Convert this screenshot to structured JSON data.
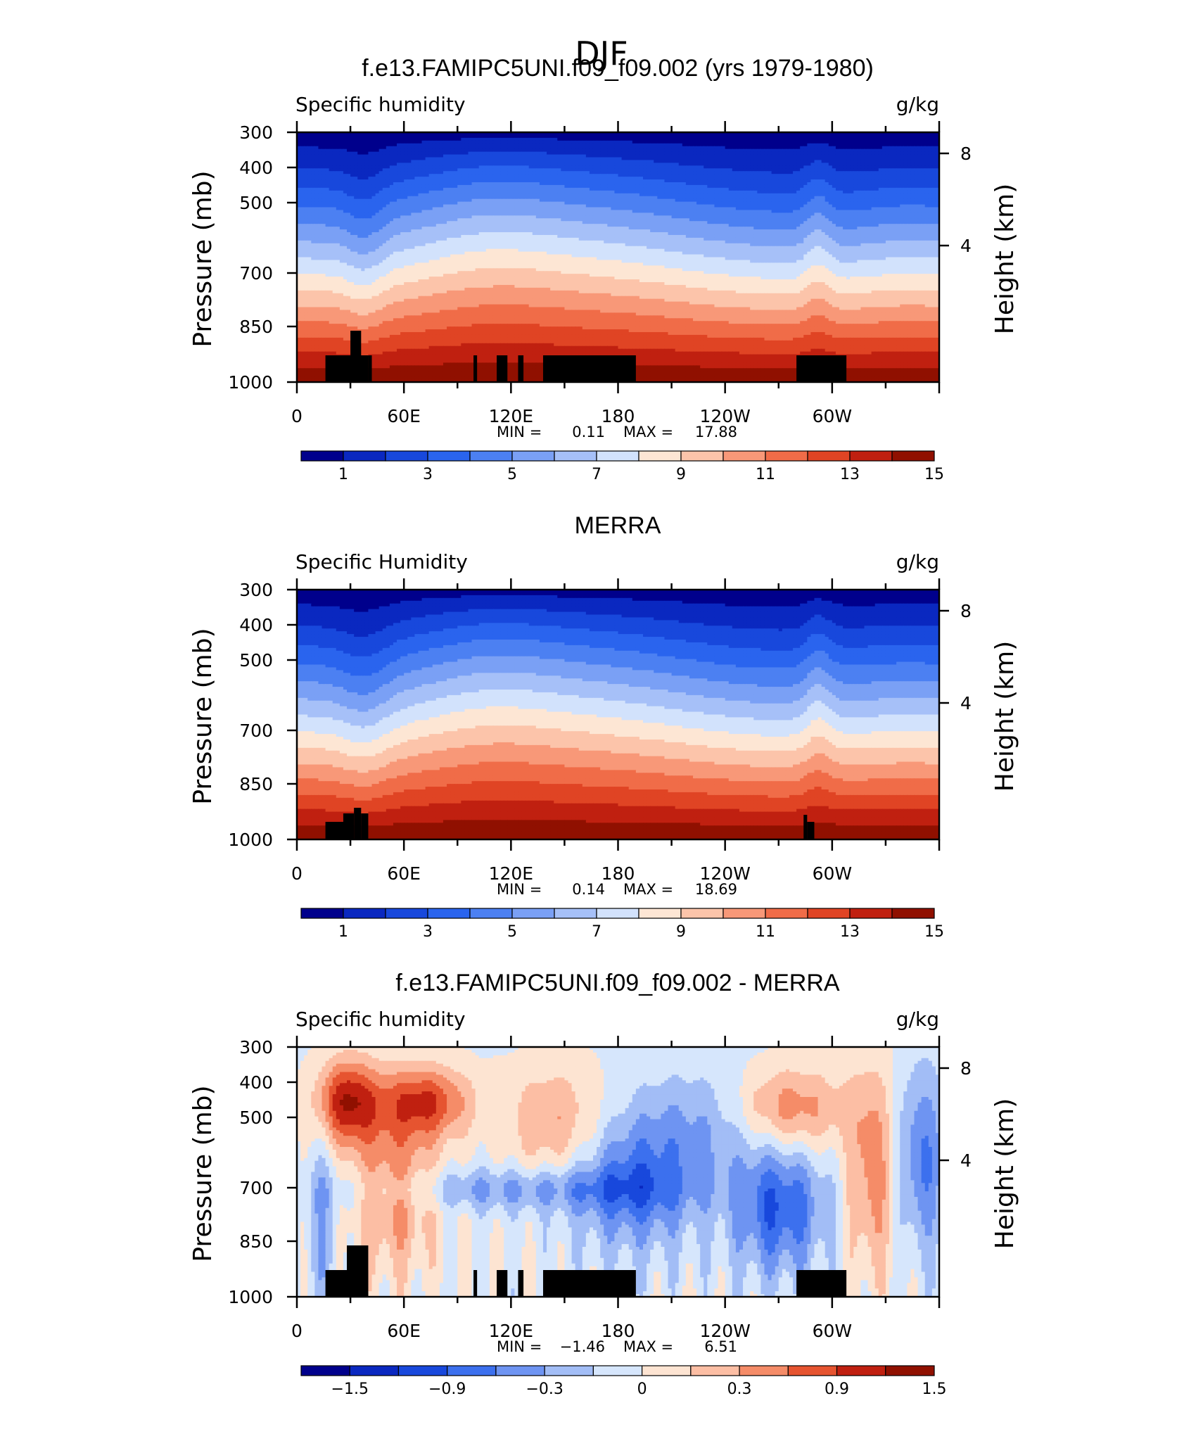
{
  "figure_title": "DJF",
  "colors": {
    "black": "#000000",
    "levels_abs": [
      "#00008c",
      "#0a28c0",
      "#1848dc",
      "#2a64ee",
      "#4c80f2",
      "#7aa0f5",
      "#a6c0f8",
      "#d2e2fc",
      "#fde6d4",
      "#fcc4aa",
      "#f89878",
      "#f06c48",
      "#e04424",
      "#c02010",
      "#901000"
    ],
    "levels_diff": [
      "#00008c",
      "#0a28c0",
      "#1848dc",
      "#3c70ee",
      "#6e94f2",
      "#a2bdf6",
      "#d6e6fc",
      "#fde4d2",
      "#fcbea4",
      "#f58c68",
      "#e65430",
      "#c02010",
      "#901000"
    ]
  },
  "chart_data": [
    {
      "type": "contour-cross-section",
      "title": "f.e13.FAMIPC5UNI.f09_f09.002 (yrs 1979-1980)",
      "left_label": "Specific humidity",
      "right_label": "g/kg",
      "ylabel": "Pressure (mb)",
      "ylabel_right": "Height (km)",
      "yticks": [
        "300",
        "400",
        "500",
        "700",
        "850",
        "1000"
      ],
      "yticks_right": [
        "8",
        "4"
      ],
      "xticks": [
        "0",
        "60E",
        "120E",
        "180",
        "120W",
        "60W"
      ],
      "stats": {
        "min_label": "MIN =",
        "min": "0.11",
        "max_label": "MAX =",
        "max": "17.88"
      },
      "colorbar_labels": [
        "1",
        "3",
        "5",
        "7",
        "9",
        "11",
        "13",
        "15"
      ],
      "field": "absolute",
      "variant": "model"
    },
    {
      "type": "contour-cross-section",
      "title": "MERRA",
      "left_label": "Specific Humidity",
      "right_label": "g/kg",
      "ylabel": "Pressure (mb)",
      "ylabel_right": "Height (km)",
      "yticks": [
        "300",
        "400",
        "500",
        "700",
        "850",
        "1000"
      ],
      "yticks_right": [
        "8",
        "4"
      ],
      "xticks": [
        "0",
        "60E",
        "120E",
        "180",
        "120W",
        "60W"
      ],
      "stats": {
        "min_label": "MIN =",
        "min": "0.14",
        "max_label": "MAX =",
        "max": "18.69"
      },
      "colorbar_labels": [
        "1",
        "3",
        "5",
        "7",
        "9",
        "11",
        "13",
        "15"
      ],
      "field": "absolute",
      "variant": "obs"
    },
    {
      "type": "contour-cross-section",
      "title": "f.e13.FAMIPC5UNI.f09_f09.002 - MERRA",
      "left_label": "Specific humidity",
      "right_label": "g/kg",
      "ylabel": "Pressure (mb)",
      "ylabel_right": "Height (km)",
      "yticks": [
        "300",
        "400",
        "500",
        "700",
        "850",
        "1000"
      ],
      "yticks_right": [
        "8",
        "4"
      ],
      "xticks": [
        "0",
        "60E",
        "120E",
        "180",
        "120W",
        "60W"
      ],
      "stats": {
        "min_label": "MIN =",
        "min": "−1.46",
        "max_label": "MAX =",
        "max": "6.51"
      },
      "colorbar_labels": [
        "−1.5",
        "−0.9",
        "−0.3",
        "0",
        "0.3",
        "0.9",
        "1.5"
      ],
      "field": "difference",
      "variant": "diff"
    }
  ]
}
